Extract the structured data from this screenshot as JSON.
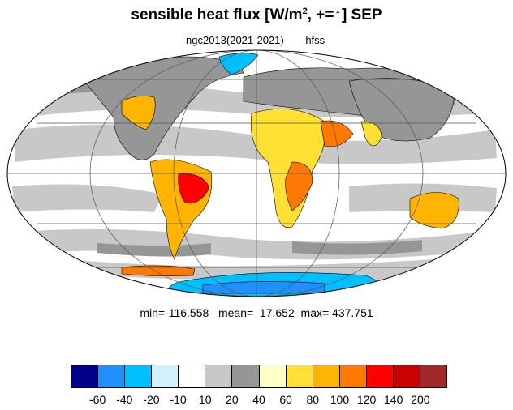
{
  "title": {
    "text": "sensible heat flux [W/m",
    "sup": "2",
    "tail": ", +=",
    "arrow": "↑",
    "end": "]  SEP"
  },
  "subtitle": {
    "model": "ngc2013(2021-2021)",
    "variable": "-hfss"
  },
  "stats": "min=-116.558   mean=  17.652  max= 437.751",
  "colorbar": {
    "colors": [
      "#00008b",
      "#1e90ff",
      "#00bfff",
      "#d0f0fb",
      "#ffffff",
      "#c8c8c8",
      "#969696",
      "#ffffc8",
      "#ffe033",
      "#ffb400",
      "#ff7800",
      "#ff0000",
      "#c80000",
      "#a02828"
    ],
    "labels": [
      "-60",
      "-40",
      "-20",
      "-10",
      "10",
      "20",
      "40",
      "60",
      "80",
      "100",
      "120",
      "140",
      "200"
    ]
  }
}
